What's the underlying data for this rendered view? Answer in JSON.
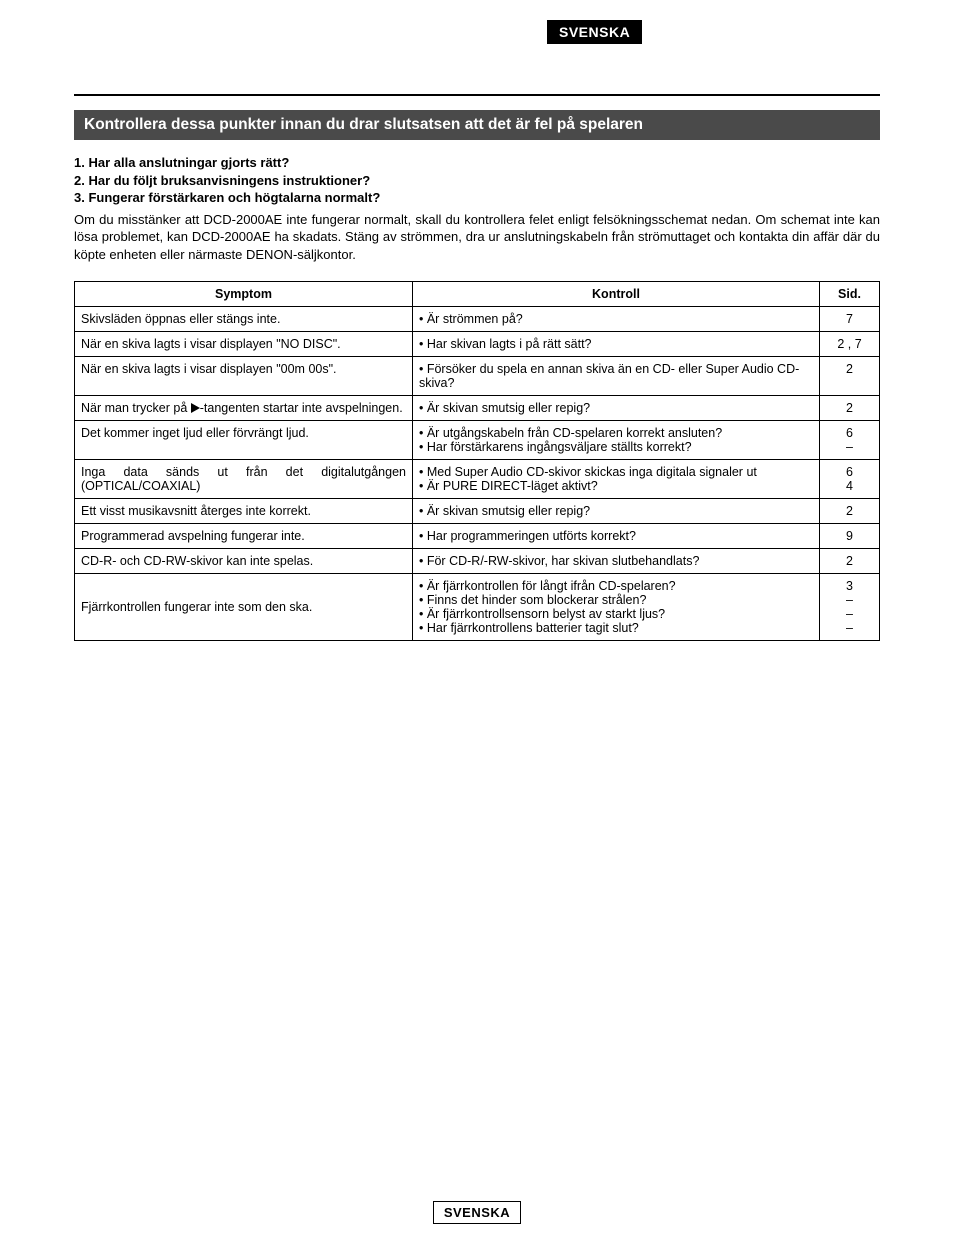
{
  "language_label": "SVENSKA",
  "section_title": "Kontrollera dessa punkter innan du drar slutsatsen att det är fel på spelaren",
  "checklist": [
    "1. Har alla anslutningar gjorts rätt?",
    "2. Har du följt bruksanvisningens instruktioner?",
    "3. Fungerar förstärkaren och högtalarna normalt?"
  ],
  "body_paragraph": "Om du misstänker att DCD-2000AE inte fungerar normalt, skall du kontrollera felet enligt felsökningsschemat nedan. Om schemat inte kan lösa problemet, kan DCD-2000AE ha skadats. Stäng av strömmen, dra ur anslutningskabeln från strömuttaget och kontakta din affär där du köpte enheten eller närmaste DENON-säljkontor.",
  "table": {
    "headers": {
      "symptom": "Symptom",
      "kontroll": "Kontroll",
      "sid": "Sid."
    },
    "rows": [
      {
        "symptom": "Skivsläden öppnas eller stängs inte.",
        "kontroll": [
          "• Är strömmen på?"
        ],
        "sid": [
          "7"
        ]
      },
      {
        "symptom": "När en skiva lagts i visar displayen \"NO DISC\".",
        "kontroll": [
          "• Har skivan lagts i på rätt sätt?"
        ],
        "sid": [
          "2 , 7"
        ]
      },
      {
        "symptom": "När en skiva lagts i visar displayen \"00m 00s\".",
        "kontroll": [
          "• Försöker du spela en annan skiva än en CD- eller Super Audio CD-skiva?"
        ],
        "sid": [
          "2"
        ]
      },
      {
        "symptom_pre": "När man trycker på ",
        "symptom_post": "-tangenten startar inte avspelningen.",
        "has_icon": true,
        "kontroll": [
          "• Är skivan smutsig eller repig?"
        ],
        "sid": [
          "2"
        ]
      },
      {
        "symptom": "Det kommer inget ljud eller förvrängt ljud.",
        "kontroll": [
          "• Är utgångskabeln från CD-spelaren korrekt ansluten?",
          "• Har förstärkarens ingångsväljare ställts korrekt?"
        ],
        "sid": [
          "6",
          "–"
        ]
      },
      {
        "symptom": "Inga data sänds ut från det digitalutgången (OPTICAL/COAXIAL)",
        "justify": true,
        "kontroll": [
          "• Med Super Audio CD-skivor skickas inga digitala signaler ut",
          "• Är PURE DIRECT-läget aktivt?"
        ],
        "sid": [
          "6",
          "4"
        ]
      },
      {
        "symptom": "Ett visst musikavsnitt återges inte korrekt.",
        "kontroll": [
          "• Är skivan smutsig eller repig?"
        ],
        "sid": [
          "2"
        ]
      },
      {
        "symptom": "Programmerad avspelning fungerar inte.",
        "kontroll": [
          "• Har programmeringen utförts korrekt?"
        ],
        "sid": [
          "9"
        ]
      },
      {
        "symptom": "CD-R- och CD-RW-skivor kan inte spelas.",
        "kontroll": [
          "• För CD-R/-RW-skivor, har skivan slutbehandlats?"
        ],
        "sid": [
          "2"
        ]
      },
      {
        "symptom": "Fjärrkontrollen fungerar inte som den ska.",
        "vcenter": true,
        "kontroll": [
          "• Är fjärrkontrollen för långt ifrån CD-spelaren?",
          "• Finns det hinder som blockerar strålen?",
          "• Är fjärrkontrollsensorn belyst av starkt ljus?",
          "• Har fjärrkontrollens batterier tagit slut?"
        ],
        "sid": [
          "3",
          "–",
          "–",
          "–"
        ]
      }
    ]
  }
}
